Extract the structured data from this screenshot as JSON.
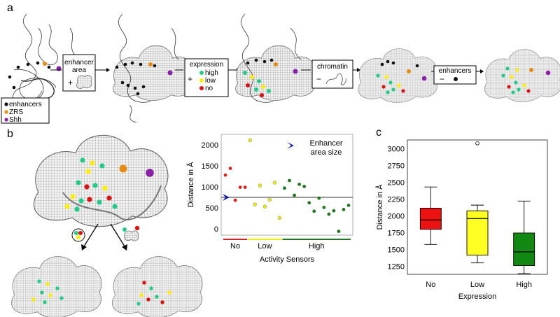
{
  "panels": {
    "a": "a",
    "b": "b",
    "c": "c"
  },
  "panel_a": {
    "legend": [
      "enhancers",
      "ZRS",
      "Shh"
    ],
    "box_enhancer_area": [
      "enhancer",
      "area"
    ],
    "box_expression": {
      "title": "expression",
      "items": [
        "high",
        "low",
        "no"
      ]
    },
    "box_chromatin": "chromatin",
    "box_enhancers": "enhancers"
  },
  "colors": {
    "high": "#22cc88",
    "low": "#ffee00",
    "no": "#dd1111",
    "enhancer": "#111111",
    "zrs": "#e88a10",
    "shh": "#8a1fa8",
    "box_no": "#ee1111",
    "box_low": "#ffff22",
    "box_high": "#118811"
  },
  "chart_data": [
    {
      "type": "scatter",
      "ylabel": "Distance in Å",
      "xlabel": "Activity Sensors",
      "ylim": [
        -150,
        2250
      ],
      "yticks": [
        0,
        500,
        1000,
        1500,
        2000
      ],
      "reference_line": 750,
      "reference_label": [
        "Enhancer",
        "area size"
      ],
      "groups": [
        {
          "name": "No",
          "color": "#dd2222",
          "points": [
            1280,
            1440,
            680,
            990,
            990
          ]
        },
        {
          "name": "Low",
          "color": "#eeee00",
          "points": [
            2110,
            580,
            1030,
            530,
            690,
            1100,
            260
          ]
        },
        {
          "name": "High",
          "color": "#227722",
          "points": [
            970,
            1150,
            800,
            1060,
            1010,
            620,
            420,
            730,
            510,
            350,
            430,
            -60,
            460,
            560
          ]
        }
      ]
    },
    {
      "type": "box",
      "ylabel": "Distance in Å",
      "xlabel": "Expression",
      "ylim": [
        1130,
        3130
      ],
      "yticks": [
        1250,
        1500,
        1750,
        2000,
        2250,
        2500,
        2750,
        3000
      ],
      "categories": [
        "No",
        "Low",
        "High"
      ],
      "boxes": [
        {
          "min": 1575,
          "q1": 1800,
          "median": 1940,
          "q3": 2115,
          "max": 2430,
          "color": "#ee1111",
          "outliers": []
        },
        {
          "min": 1300,
          "q1": 1415,
          "median": 1960,
          "q3": 2075,
          "max": 2160,
          "color": "#ffff22",
          "outliers": [
            3080
          ]
        },
        {
          "min": 1140,
          "q1": 1260,
          "median": 1465,
          "q3": 1745,
          "max": 2220,
          "color": "#118811",
          "outliers": []
        }
      ]
    }
  ]
}
